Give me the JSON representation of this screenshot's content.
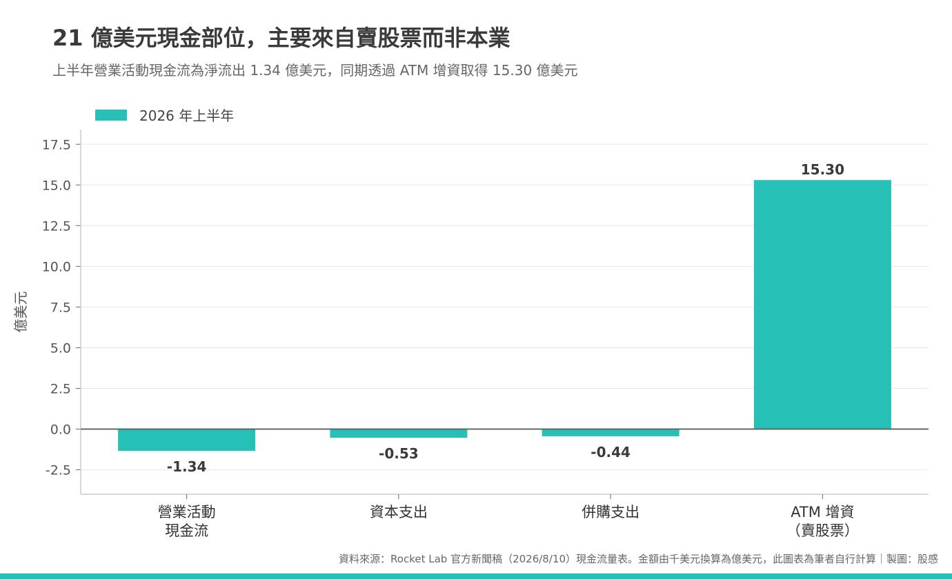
{
  "header": {
    "title": "21 億美元現金部位，主要來自賣股票而非本業",
    "subtitle": "上半年營業活動現金流為淨流出 1.34 億美元，同期透過 ATM 增資取得 15.30 億美元"
  },
  "footer": {
    "source": "資料來源：Rocket Lab 官方新聞稿（2026/8/10）現金流量表。金額由千美元換算為億美元，此圖表為筆者自行計算｜製圖：股感"
  },
  "colors": {
    "bar": "#26c0b7",
    "band": "#26c0b7"
  },
  "chart_data": {
    "type": "bar",
    "title": "21 億美元現金部位，主要來自賣股票而非本業",
    "subtitle": "上半年營業活動現金流為淨流出 1.34 億美元，同期透過 ATM 增資取得 15.30 億美元",
    "categories": [
      [
        "營業活動",
        "現金流"
      ],
      [
        "資本支出"
      ],
      [
        "併購支出"
      ],
      [
        "ATM 增資",
        "（賣股票）"
      ]
    ],
    "series": [
      {
        "name": "2026 年上半年",
        "values": [
          -1.34,
          -0.53,
          -0.44,
          15.3
        ],
        "labels": [
          "-1.34",
          "-0.53",
          "-0.44",
          "15.30"
        ]
      }
    ],
    "xlabel": "",
    "ylabel": "億美元",
    "ylim": [
      -4.0,
      18.4
    ],
    "yticks": [
      -2.5,
      0.0,
      2.5,
      5.0,
      7.5,
      10.0,
      12.5,
      15.0,
      17.5
    ],
    "ytick_labels": [
      "-2.5",
      "0.0",
      "2.5",
      "5.0",
      "7.5",
      "10.0",
      "12.5",
      "15.0",
      "17.5"
    ],
    "grid": true,
    "legend": "top-left"
  }
}
